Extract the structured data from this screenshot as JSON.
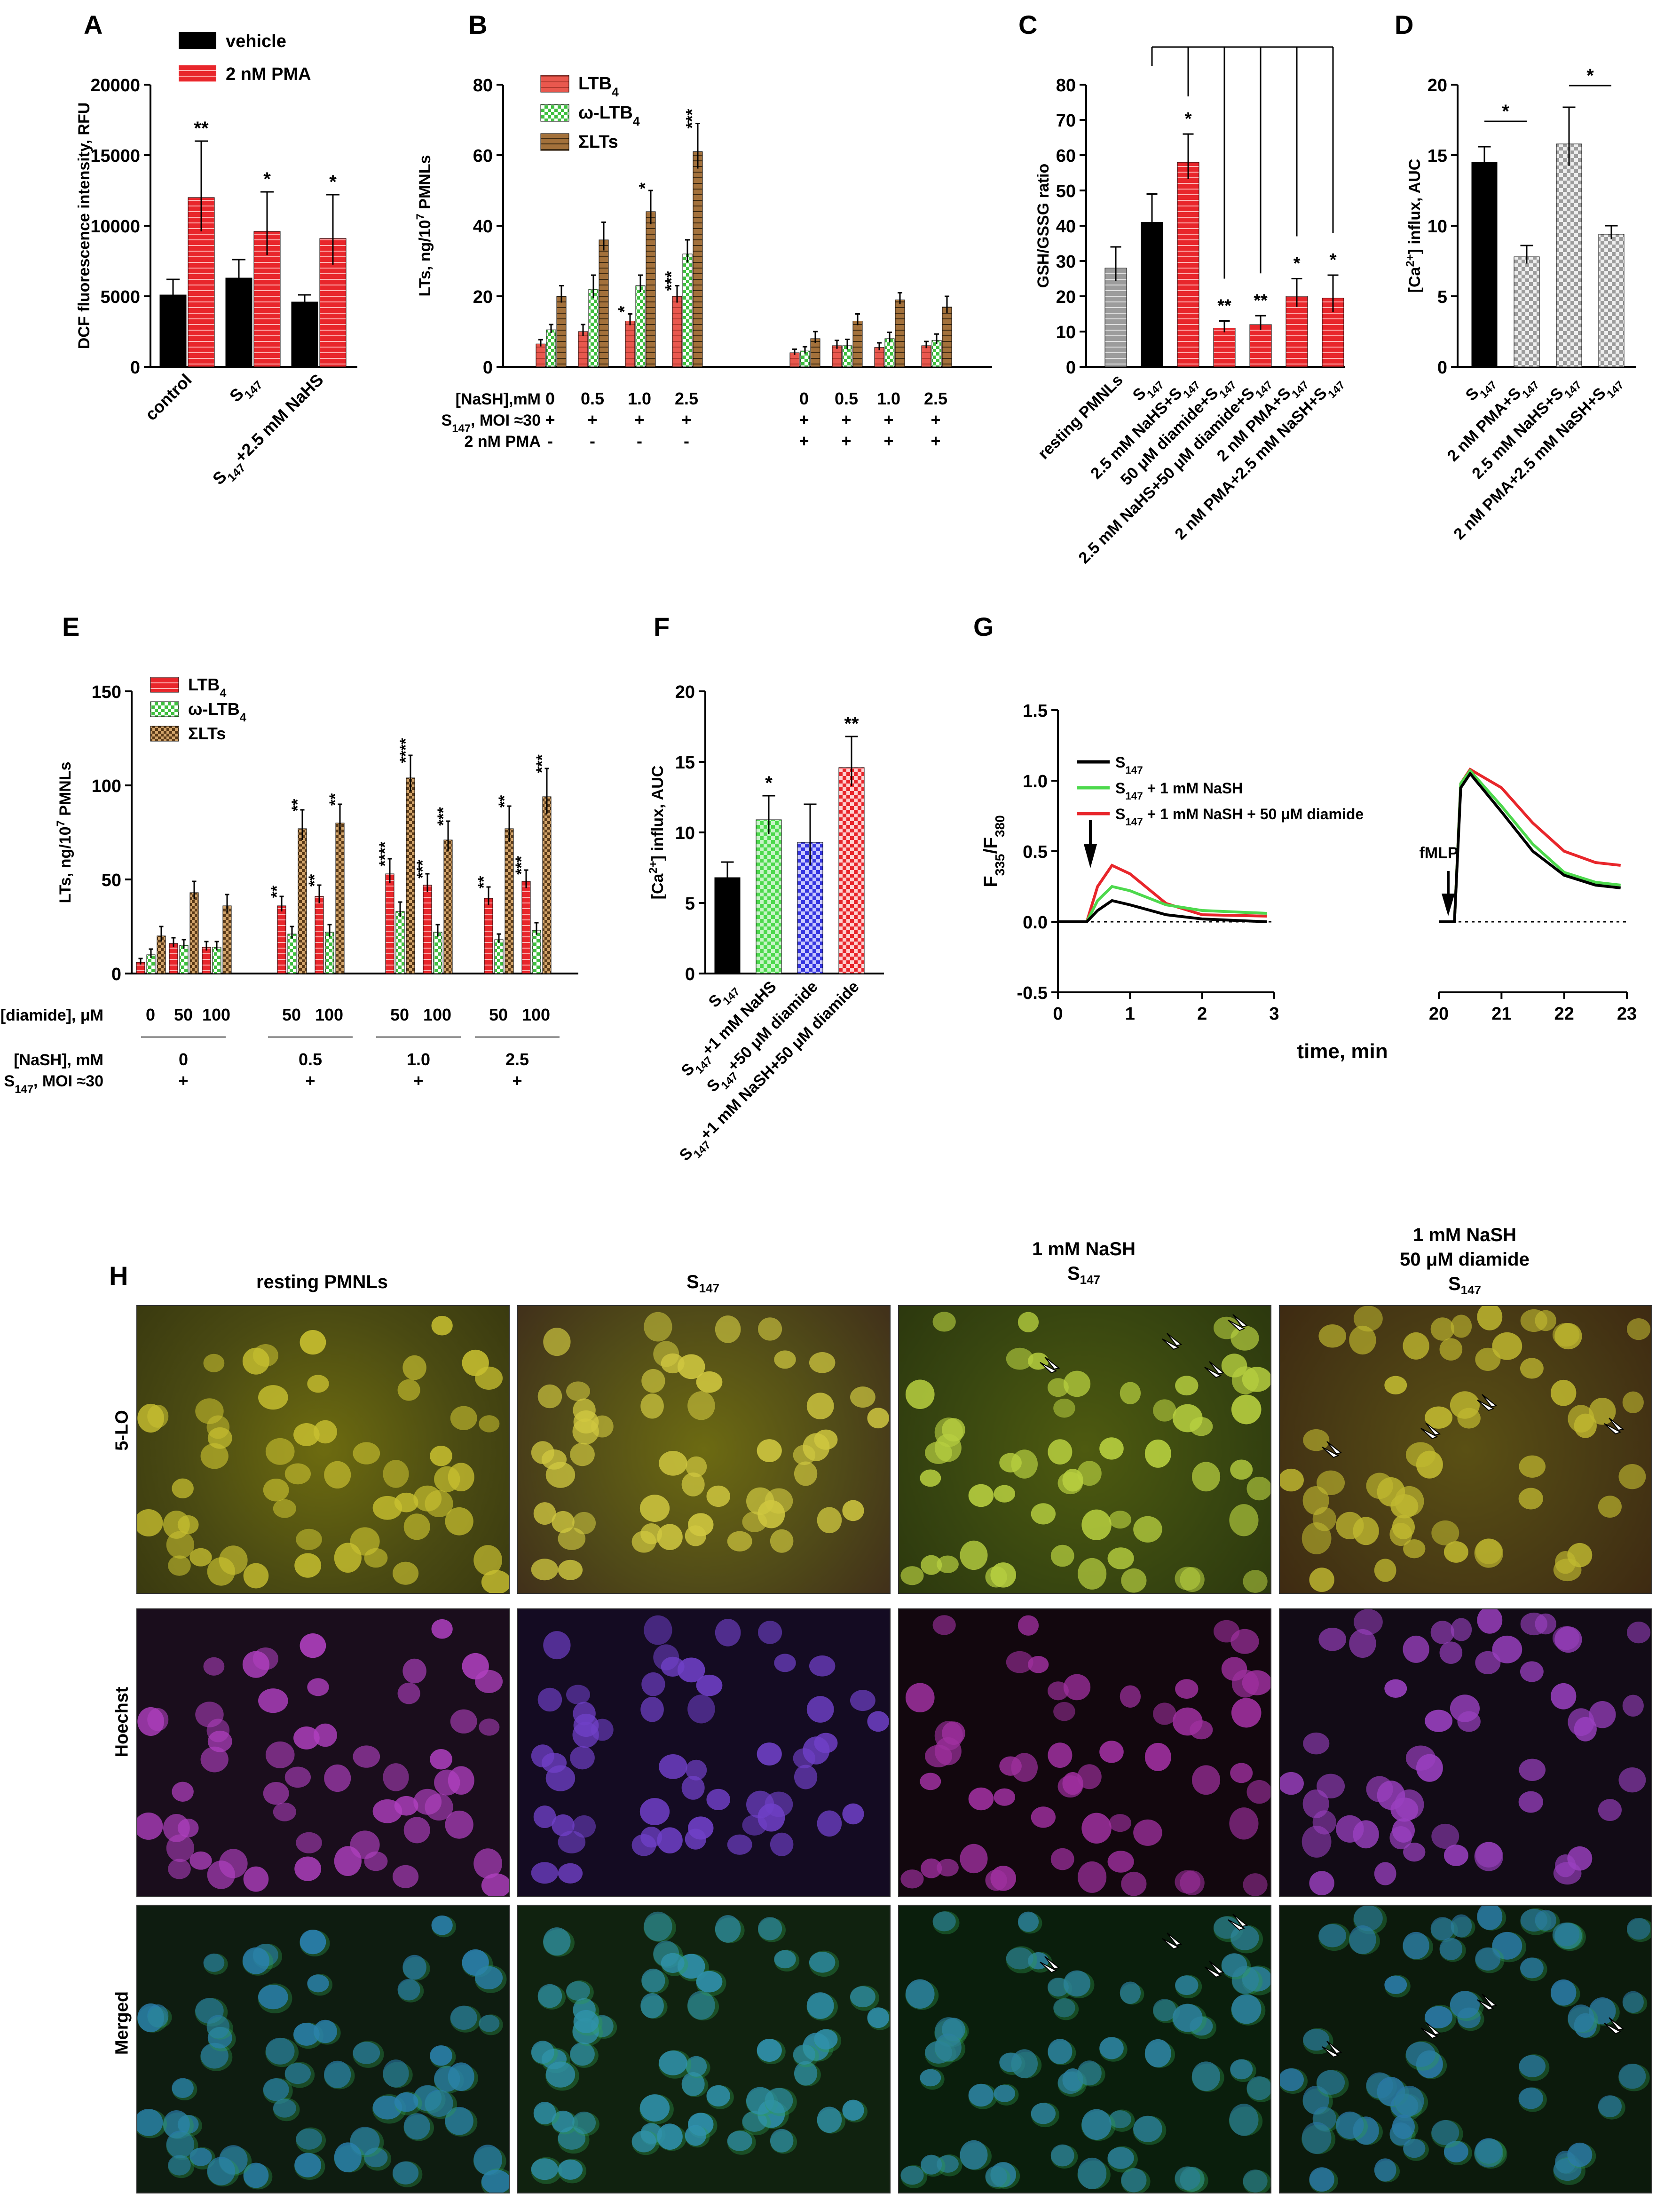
{
  "colors": {
    "black": "#000000",
    "red": "#e8262b",
    "salmon": "#e9584e",
    "green": "#3fbf3f",
    "brown": "#a3713b",
    "gray": "#9c9c9c",
    "lightgray": "#c8c8c8",
    "lime": "#4dd94d",
    "blue": "#3535e0"
  },
  "panels": {
    "A": "A",
    "B": "B",
    "C": "C",
    "D": "D",
    "E": "E",
    "F": "F",
    "G": "G",
    "H": "H"
  },
  "chart_data": [
    {
      "id": "A",
      "type": "bar",
      "ylabel": "DCF fluorescence intensity, RFU",
      "ylim": [
        0,
        20000
      ],
      "yticks": [
        "0",
        "5000",
        "10000",
        "15000",
        "20000"
      ],
      "categories": [
        "control",
        "S147",
        "S147+2.5 mM NaHS"
      ],
      "series": [
        {
          "name": "vehicle",
          "values": [
            5100,
            6300,
            4600
          ],
          "errors": [
            1100,
            1300,
            500
          ]
        },
        {
          "name": "2 nM PMA",
          "values": [
            12000,
            9600,
            9100
          ],
          "errors": [
            4000,
            2800,
            3100
          ]
        }
      ],
      "annotations": [
        "**",
        "*",
        "*"
      ]
    },
    {
      "id": "B",
      "type": "bar",
      "ylabel": "LTs, ng/10^7 PMNLs",
      "ylim": [
        0,
        80
      ],
      "yticks": [
        "0",
        "20",
        "40",
        "60",
        "80"
      ],
      "series": [
        {
          "name": "LTB4",
          "values": [
            6.5,
            10,
            13,
            20,
            4,
            6,
            5.5,
            6
          ],
          "errors": [
            1.2,
            2,
            2,
            3,
            1,
            1.5,
            1.3,
            1.2
          ]
        },
        {
          "name": "ω-LTB4",
          "values": [
            10.5,
            22,
            23,
            32,
            4.5,
            6,
            8,
            7.5
          ],
          "errors": [
            1.5,
            4,
            3,
            4,
            1.2,
            1.8,
            1.8,
            1.8
          ]
        },
        {
          "name": "ΣLTs",
          "values": [
            20,
            36,
            44,
            61,
            8,
            13,
            19,
            17
          ],
          "errors": [
            3,
            5,
            6,
            8,
            2,
            2,
            2,
            3
          ]
        }
      ],
      "row_labels": [
        "[NaSH],mM",
        "S147, MOI ≈30",
        "2 nM PMA"
      ],
      "naSH": [
        "0",
        "0.5",
        "1.0",
        "2.5",
        "0",
        "0.5",
        "1.0",
        "2.5"
      ],
      "s147": [
        "+",
        "+",
        "+",
        "+",
        "+",
        "+",
        "+",
        "+"
      ],
      "pma": [
        "-",
        "-",
        "-",
        "-",
        "+",
        "+",
        "+",
        "+"
      ],
      "annotations": [
        {
          "group": 2,
          "series": 0,
          "text": "*"
        },
        {
          "group": 2,
          "series": 2,
          "text": "*"
        },
        {
          "group": 3,
          "series": 0,
          "text": "***"
        },
        {
          "group": 3,
          "series": 2,
          "text": "***"
        }
      ]
    },
    {
      "id": "C",
      "type": "bar",
      "ylabel": "GSH/GSSG ratio",
      "ylim": [
        0,
        80
      ],
      "yticks": [
        "0",
        "10",
        "20",
        "30",
        "40",
        "50",
        "60",
        "70",
        "80"
      ],
      "categories": [
        "resting PMNLs",
        "S147",
        "2.5 mM NaHS+S147",
        "50 μM diamide+S147",
        "2.5 mM NaHS+50 μM diamide+S147",
        "2 nM PMA+S147",
        "2 nM PMA+2.5 mM NaSH+S147"
      ],
      "values": [
        28,
        41,
        58,
        11,
        12,
        20,
        19.5
      ],
      "errors": [
        6,
        8,
        8,
        2,
        2.5,
        5,
        6.5
      ],
      "annotations": [
        "",
        "",
        "*",
        "**",
        "**",
        "*",
        "*"
      ]
    },
    {
      "id": "D",
      "type": "bar",
      "ylabel": "[Ca2+] influx, AUC",
      "ylim": [
        0,
        20
      ],
      "yticks": [
        "0",
        "5",
        "10",
        "15",
        "20"
      ],
      "categories": [
        "S147",
        "2 nM PMA+S147",
        "2.5 mM NaHS+S147",
        "2 nM PMA+2.5 mM NaSH+S147"
      ],
      "values": [
        14.5,
        7.8,
        15.8,
        9.4
      ],
      "errors": [
        1.1,
        0.8,
        2.6,
        0.6
      ],
      "annotations": [
        "*",
        "*"
      ]
    },
    {
      "id": "E",
      "type": "bar",
      "ylabel": "LTs, ng/10^7 PMNLs",
      "ylim": [
        0,
        150
      ],
      "yticks": [
        "0",
        "50",
        "100",
        "150"
      ],
      "series": [
        {
          "name": "LTB4",
          "values": [
            6,
            16,
            14,
            36,
            41,
            53,
            47,
            40,
            49
          ],
          "errors": [
            2,
            3,
            3,
            5,
            6,
            8,
            6,
            6,
            6
          ]
        },
        {
          "name": "ω-LTB4",
          "values": [
            10,
            15,
            14,
            21,
            22,
            33,
            22,
            18,
            23
          ],
          "errors": [
            3,
            3,
            3,
            4,
            4,
            5,
            4,
            3,
            4
          ]
        },
        {
          "name": "ΣLTs",
          "values": [
            20,
            43,
            36,
            77,
            80,
            104,
            71,
            77,
            94
          ],
          "errors": [
            5,
            6,
            6,
            10,
            10,
            12,
            10,
            12,
            15
          ]
        }
      ],
      "diamide": [
        "0",
        "50",
        "100",
        "50",
        "100",
        "50",
        "100",
        "50",
        "100"
      ],
      "row_labels": [
        "[diamide], μM",
        "[NaSH], mM",
        "S147, MOI ≈30"
      ],
      "naSH_groups": [
        "0",
        "0.5",
        "1.0",
        "2.5"
      ],
      "s147": [
        "+",
        "+",
        "+",
        "+"
      ],
      "annotations": [
        [
          "",
          "",
          ""
        ],
        [
          "",
          "",
          ""
        ],
        [
          "",
          "",
          ""
        ],
        [
          "**",
          "",
          "**"
        ],
        [
          "**",
          "",
          "**"
        ],
        [
          "****",
          "",
          "****"
        ],
        [
          "***",
          "",
          "***"
        ],
        [
          "**",
          "",
          "**"
        ],
        [
          "***",
          "",
          "***"
        ]
      ]
    },
    {
      "id": "F",
      "type": "bar",
      "ylabel": "[Ca2+] influx, AUC",
      "ylim": [
        0,
        20
      ],
      "yticks": [
        "0",
        "5",
        "10",
        "15",
        "20"
      ],
      "categories": [
        "S147",
        "S147+1 mM NaHS",
        "S147+50 μM diamide",
        "S147+1 mM NaSH+50 μM diamide"
      ],
      "values": [
        6.8,
        10.9,
        9.3,
        14.6
      ],
      "errors": [
        1.1,
        1.7,
        2.7,
        2.2
      ],
      "annotations": [
        "",
        "*",
        "",
        "**"
      ]
    },
    {
      "id": "G",
      "type": "line",
      "ylabel": "F335/F380",
      "xlabel": "time, min",
      "ylim": [
        -0.5,
        1.5
      ],
      "yticks": [
        "-0.5",
        "0.0",
        "0.5",
        "1.0",
        "1.5"
      ],
      "xticks_left": [
        "0",
        "1",
        "2",
        "3"
      ],
      "xticks_right": [
        "20",
        "21",
        "22",
        "23"
      ],
      "series": [
        {
          "name": "S147",
          "color": "black",
          "left": [
            [
              0,
              0
            ],
            [
              0.4,
              0
            ],
            [
              0.55,
              0.08
            ],
            [
              0.75,
              0.15
            ],
            [
              1.0,
              0.12
            ],
            [
              1.5,
              0.05
            ],
            [
              2.0,
              0.02
            ],
            [
              2.9,
              0
            ]
          ],
          "right": [
            [
              20,
              0
            ],
            [
              20.25,
              0
            ],
            [
              20.35,
              0.95
            ],
            [
              20.5,
              1.05
            ],
            [
              21,
              0.78
            ],
            [
              21.5,
              0.5
            ],
            [
              22,
              0.33
            ],
            [
              22.5,
              0.26
            ],
            [
              22.9,
              0.24
            ]
          ]
        },
        {
          "name": "S147 + 1 mM NaSH",
          "color": "lime",
          "left": [
            [
              0,
              0
            ],
            [
              0.4,
              0
            ],
            [
              0.55,
              0.15
            ],
            [
              0.75,
              0.25
            ],
            [
              1.0,
              0.22
            ],
            [
              1.5,
              0.12
            ],
            [
              2.0,
              0.08
            ],
            [
              2.9,
              0.06
            ]
          ],
          "right": [
            [
              20,
              0
            ],
            [
              20.25,
              0
            ],
            [
              20.35,
              0.98
            ],
            [
              20.5,
              1.07
            ],
            [
              21,
              0.82
            ],
            [
              21.5,
              0.55
            ],
            [
              22,
              0.35
            ],
            [
              22.5,
              0.28
            ],
            [
              22.9,
              0.26
            ]
          ]
        },
        {
          "name": "S147 + 1 mM NaSH + 50 μM diamide",
          "color": "red",
          "left": [
            [
              0,
              0
            ],
            [
              0.4,
              0
            ],
            [
              0.55,
              0.25
            ],
            [
              0.75,
              0.4
            ],
            [
              1.0,
              0.34
            ],
            [
              1.5,
              0.13
            ],
            [
              2.0,
              0.05
            ],
            [
              2.9,
              0.04
            ]
          ],
          "right": [
            [
              20,
              0
            ],
            [
              20.25,
              0
            ],
            [
              20.35,
              0.98
            ],
            [
              20.5,
              1.08
            ],
            [
              21,
              0.95
            ],
            [
              21.5,
              0.7
            ],
            [
              22,
              0.5
            ],
            [
              22.5,
              0.42
            ],
            [
              22.9,
              0.4
            ]
          ]
        }
      ],
      "arrow_label": "fMLP"
    }
  ],
  "microscopy": {
    "columns": [
      "resting PMNLs",
      "S147",
      "1 mM NaSH\nS147",
      "1 mM NaSH\n50 μM diamide\nS147"
    ],
    "rows": [
      "5-LO",
      "Hoechst",
      "Merged"
    ]
  }
}
